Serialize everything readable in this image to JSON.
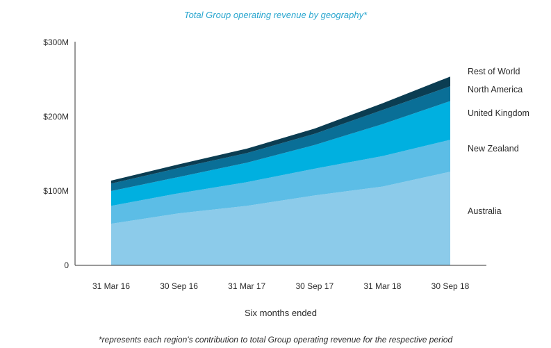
{
  "chart_data": {
    "type": "area",
    "stacked": true,
    "title": "Total Group operating revenue by geography*",
    "xlabel": "Six months ended",
    "ylabel": "",
    "categories": [
      "31 Mar 16",
      "30 Sep 16",
      "31 Mar 17",
      "30 Sep 17",
      "31 Mar 18",
      "30 Sep 18"
    ],
    "y_ticks": [
      "0",
      "$100M",
      "$200M",
      "$300M"
    ],
    "y_tick_values": [
      0,
      100,
      200,
      300
    ],
    "ylim": [
      0,
      300
    ],
    "grid": false,
    "legend_placement": "right",
    "series": [
      {
        "name": "Australia",
        "color": "#8ccbea",
        "values": [
          56,
          70,
          80,
          94,
          106,
          126
        ]
      },
      {
        "name": "New Zealand",
        "color": "#5cbde6",
        "values": [
          24,
          27,
          32,
          36,
          41,
          43
        ]
      },
      {
        "name": "United Kingdom",
        "color": "#00b0e0",
        "values": [
          20,
          22,
          26,
          32,
          43,
          52
        ]
      },
      {
        "name": "North America",
        "color": "#0a6f97",
        "values": [
          10,
          12,
          13,
          15,
          19,
          20
        ]
      },
      {
        "name": "Rest of World",
        "color": "#0b3d52",
        "values": [
          4,
          5,
          6,
          7,
          9,
          13
        ]
      }
    ],
    "footnote": "*represents each region's contribution to total Group operating revenue for the respective period"
  }
}
